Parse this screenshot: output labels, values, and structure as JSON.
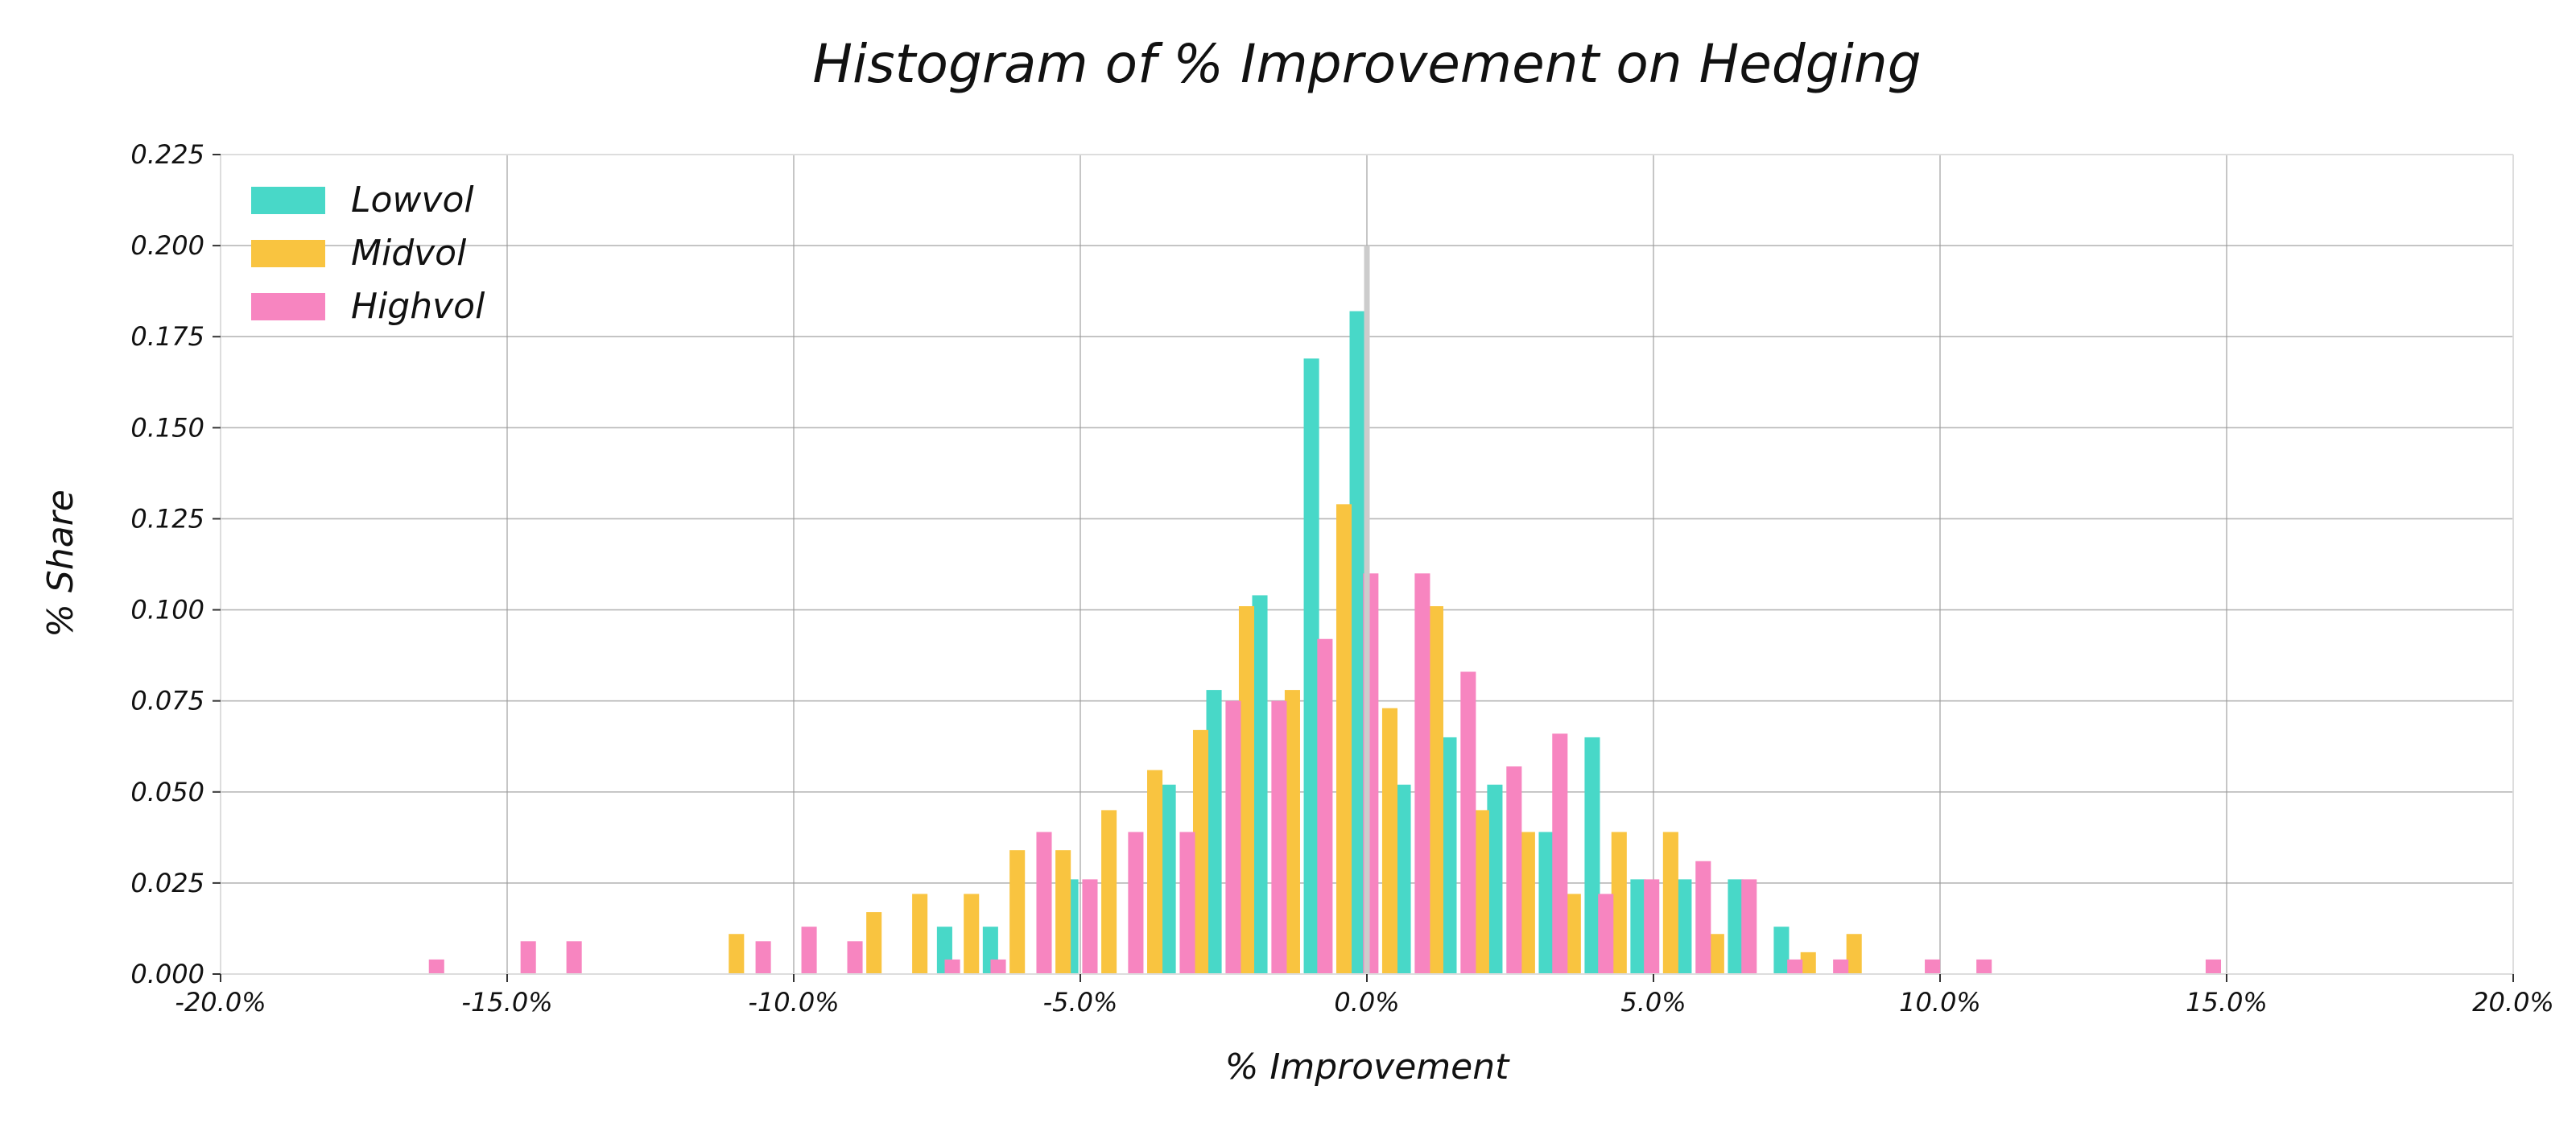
{
  "chart_data": {
    "type": "bar",
    "title": "Histogram of % Improvement on Hedging",
    "xlabel": "% Improvement",
    "ylabel": "% Share",
    "xlim": [
      -0.2,
      0.2
    ],
    "ylim": [
      0,
      0.225
    ],
    "x_ticks": [
      "-20.0%",
      "-15.0%",
      "-10.0%",
      "-5.0%",
      "0.0%",
      "5.0%",
      "10.0%",
      "15.0%",
      "20.0%"
    ],
    "x_tick_values": [
      -0.2,
      -0.15,
      -0.1,
      -0.05,
      0.0,
      0.05,
      0.1,
      0.15,
      0.2
    ],
    "y_ticks": [
      "0.000",
      "0.025",
      "0.050",
      "0.075",
      "0.100",
      "0.125",
      "0.150",
      "0.175",
      "0.200",
      "0.225"
    ],
    "y_tick_values": [
      0,
      0.025,
      0.05,
      0.075,
      0.1,
      0.125,
      0.15,
      0.175,
      0.2,
      0.225
    ],
    "grid": true,
    "legend_position": "top-left",
    "reference_line_x": 0.0,
    "reference_line_ymax": 0.2,
    "reference_line_color": "#cccccc",
    "series": [
      {
        "name": "Lowvol",
        "color": "#48D8C8",
        "bins": [
          {
            "x": -0.071,
            "y": 0.013
          },
          {
            "x": -0.063,
            "y": 0.013
          },
          {
            "x": -0.049,
            "y": 0.026
          },
          {
            "x": -0.032,
            "y": 0.052
          },
          {
            "x": -0.024,
            "y": 0.078
          },
          {
            "x": -0.016,
            "y": 0.104
          },
          {
            "x": -0.007,
            "y": 0.169
          },
          {
            "x": 0.001,
            "y": 0.182
          },
          {
            "x": 0.009,
            "y": 0.052
          },
          {
            "x": 0.017,
            "y": 0.065
          },
          {
            "x": 0.025,
            "y": 0.052
          },
          {
            "x": 0.034,
            "y": 0.039
          },
          {
            "x": 0.042,
            "y": 0.065
          },
          {
            "x": 0.05,
            "y": 0.026
          },
          {
            "x": 0.058,
            "y": 0.026
          },
          {
            "x": 0.067,
            "y": 0.026
          },
          {
            "x": 0.075,
            "y": 0.013
          }
        ]
      },
      {
        "name": "Midvol",
        "color": "#F9C440",
        "bins": [
          {
            "x": -0.11,
            "y": 0.011
          },
          {
            "x": -0.086,
            "y": 0.017
          },
          {
            "x": -0.078,
            "y": 0.022
          },
          {
            "x": -0.069,
            "y": 0.022
          },
          {
            "x": -0.061,
            "y": 0.034
          },
          {
            "x": -0.053,
            "y": 0.034
          },
          {
            "x": -0.045,
            "y": 0.045
          },
          {
            "x": -0.037,
            "y": 0.056
          },
          {
            "x": -0.029,
            "y": 0.067
          },
          {
            "x": -0.021,
            "y": 0.101
          },
          {
            "x": -0.013,
            "y": 0.078
          },
          {
            "x": -0.004,
            "y": 0.129
          },
          {
            "x": 0.004,
            "y": 0.073
          },
          {
            "x": 0.012,
            "y": 0.101
          },
          {
            "x": 0.02,
            "y": 0.045
          },
          {
            "x": 0.028,
            "y": 0.039
          },
          {
            "x": 0.036,
            "y": 0.022
          },
          {
            "x": 0.044,
            "y": 0.039
          },
          {
            "x": 0.053,
            "y": 0.039
          },
          {
            "x": 0.061,
            "y": 0.011
          },
          {
            "x": 0.077,
            "y": 0.006
          },
          {
            "x": 0.085,
            "y": 0.011
          }
        ]
      },
      {
        "name": "Highvol",
        "color": "#F785C0",
        "bins": [
          {
            "x": -0.165,
            "y": 0.004
          },
          {
            "x": -0.149,
            "y": 0.009
          },
          {
            "x": -0.141,
            "y": 0.009
          },
          {
            "x": -0.108,
            "y": 0.009
          },
          {
            "x": -0.1,
            "y": 0.013
          },
          {
            "x": -0.092,
            "y": 0.009
          },
          {
            "x": -0.075,
            "y": 0.004
          },
          {
            "x": -0.067,
            "y": 0.004
          },
          {
            "x": -0.059,
            "y": 0.039
          },
          {
            "x": -0.051,
            "y": 0.026
          },
          {
            "x": -0.043,
            "y": 0.039
          },
          {
            "x": -0.034,
            "y": 0.039
          },
          {
            "x": -0.026,
            "y": 0.075
          },
          {
            "x": -0.018,
            "y": 0.075
          },
          {
            "x": -0.01,
            "y": 0.092
          },
          {
            "x": -0.002,
            "y": 0.11
          },
          {
            "x": 0.007,
            "y": 0.11
          },
          {
            "x": 0.015,
            "y": 0.083
          },
          {
            "x": 0.023,
            "y": 0.057
          },
          {
            "x": 0.031,
            "y": 0.066
          },
          {
            "x": 0.039,
            "y": 0.022
          },
          {
            "x": 0.047,
            "y": 0.026
          },
          {
            "x": 0.056,
            "y": 0.031
          },
          {
            "x": 0.064,
            "y": 0.026
          },
          {
            "x": 0.072,
            "y": 0.004
          },
          {
            "x": 0.08,
            "y": 0.004
          },
          {
            "x": 0.096,
            "y": 0.004
          },
          {
            "x": 0.105,
            "y": 0.004
          },
          {
            "x": 0.145,
            "y": 0.004
          }
        ]
      }
    ]
  }
}
